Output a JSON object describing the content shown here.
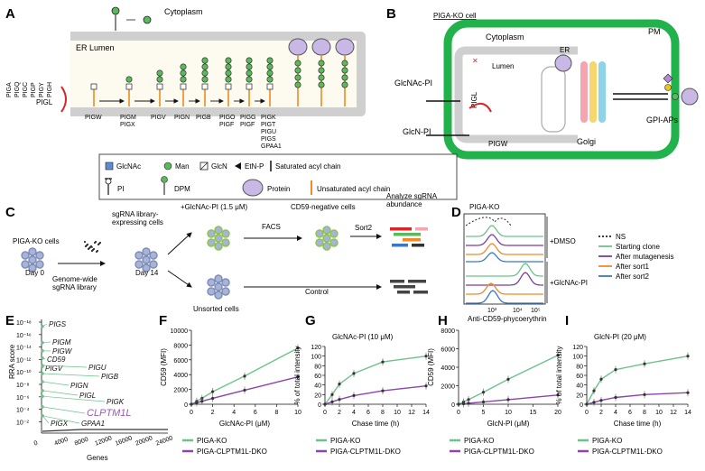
{
  "panels": {
    "A": {
      "letter": "A",
      "cytoplasm": "Cytoplasm",
      "er_lumen": "ER Lumen",
      "piga_complex": [
        "PIGA",
        "PIGQ",
        "PIGC",
        "PIGP",
        "PIGY",
        "PIGH"
      ],
      "pigl": "PIGL",
      "steps": [
        "PIGW",
        "PIGM\nPIGX",
        "PIGV",
        "PIGN",
        "PIGB",
        "PIGO\nPIGF",
        "PIGG\nPIGF",
        "PIGK\nPIGT\nPIGU\nPIGS\nGPAA1"
      ]
    },
    "B": {
      "letter": "B",
      "title": "PIGA-KO cell",
      "pm": "PM",
      "cytoplasm": "Cytoplasm",
      "er": "ER",
      "lumen": "Lumen",
      "glcnac_pi": "GlcNAc-PI",
      "glcn_pi": "GlcN-PI",
      "pigl": "PIGL",
      "pigw": "PIGW",
      "golgi": "Golgi",
      "gpi_aps": "GPI-APs"
    },
    "legend": {
      "glcnac": "GlcNAc",
      "man": "Man",
      "glcn": "GlcN",
      "etnp": "EtN-P",
      "saturated": "Saturated acyl chain",
      "pi": "PI",
      "dpm": "DPM",
      "protein": "Protein",
      "unsaturated": "Unsaturated acyl chain"
    },
    "C": {
      "letter": "C",
      "piga_ko_cells": "PIGA-KO cells",
      "day0": "Day 0",
      "library": "Genome-wide\nsgRNA library",
      "library_cells": "sgRNA library-\nexpressing cells",
      "day14": "Day 14",
      "treatment": "+GlcNAc-PI (1.5 μM)",
      "facs": "FACS",
      "cd59_neg": "CD59-negative cells",
      "sort2": "Sort2",
      "analyze": "Analyze sgRNA\nabundance",
      "unsorted": "Unsorted cells",
      "control": "Control"
    },
    "D": {
      "letter": "D",
      "title": "PIGA-KO",
      "dmso": "+DMSO",
      "glcnac": "+GlcNAc-PI",
      "xlabel": "Anti-CD59-phycoerythrin",
      "ticks": [
        "10³",
        "10⁴",
        "10⁵"
      ],
      "legend": [
        {
          "label": "NS",
          "color": "#222222",
          "dash": true
        },
        {
          "label": "Starting clone",
          "color": "#6cc38a"
        },
        {
          "label": "After mutagenesis",
          "color": "#7a3fa0"
        },
        {
          "label": "After sort1",
          "color": "#f08a24"
        },
        {
          "label": "After sort2",
          "color": "#3a78c2"
        }
      ]
    },
    "E": {
      "letter": "E",
      "ylabel": "RRA score",
      "xlabel": "Genes",
      "yticks": [
        "10⁻¹⁸",
        "10⁻¹⁶",
        "10⁻¹⁴",
        "10⁻¹²",
        "10⁻¹⁰",
        "10⁻⁸",
        "10⁻⁶",
        "10⁻⁴",
        "10⁻²"
      ],
      "xticks": [
        "0",
        "4000",
        "8000",
        "12000",
        "16000",
        "20000",
        "24000"
      ],
      "genes": [
        "PIGS",
        "PIGM",
        "PIGW",
        "CD59",
        "PIGV",
        "PIGU",
        "PIGB",
        "PIGN",
        "PIGL",
        "PIGK",
        "CLPTM1L",
        "PIGX",
        "GPAA1"
      ]
    },
    "F": {
      "letter": "F"
    },
    "G": {
      "letter": "G"
    },
    "H": {
      "letter": "H"
    },
    "I": {
      "letter": "I"
    }
  },
  "chart_data": [
    {
      "panel": "F",
      "type": "line",
      "title": "",
      "xlabel": "GlcNAc-PI (μM)",
      "ylabel": "CD59 (MFI)",
      "xlim": [
        0,
        10
      ],
      "ylim": [
        0,
        10000
      ],
      "xticks": [
        0,
        2,
        4,
        6,
        8,
        10
      ],
      "yticks": [
        0,
        2000,
        4000,
        6000,
        8000,
        10000
      ],
      "series": [
        {
          "name": "PIGA-KO",
          "color": "#6cc38a",
          "x": [
            0,
            0.5,
            1,
            2,
            5,
            10
          ],
          "y": [
            0,
            400,
            800,
            1700,
            3800,
            7600
          ]
        },
        {
          "name": "PIGA-CLPTM1L-DKO",
          "color": "#8e44ad",
          "x": [
            0,
            0.5,
            1,
            2,
            5,
            10
          ],
          "y": [
            0,
            200,
            400,
            800,
            1900,
            3700
          ]
        }
      ]
    },
    {
      "panel": "G",
      "type": "line",
      "title": "GlcNAc-PI (10 μM)",
      "xlabel": "Chase time (h)",
      "ylabel": "% of total intensity",
      "xlim": [
        0,
        14
      ],
      "ylim": [
        0,
        120
      ],
      "xticks": [
        0,
        2,
        4,
        6,
        8,
        10,
        12,
        14
      ],
      "yticks": [
        0,
        20,
        40,
        60,
        80,
        100,
        120
      ],
      "series": [
        {
          "name": "PIGA-KO",
          "color": "#6cc38a",
          "x": [
            0,
            1,
            2,
            4,
            8,
            14
          ],
          "y": [
            0,
            20,
            42,
            64,
            88,
            100
          ]
        },
        {
          "name": "PIGA-CLPTM1L-DKO",
          "color": "#8e44ad",
          "x": [
            0,
            1,
            2,
            4,
            8,
            14
          ],
          "y": [
            0,
            5,
            10,
            18,
            28,
            38
          ]
        }
      ]
    },
    {
      "panel": "H",
      "type": "line",
      "title": "",
      "xlabel": "GlcN-PI (μM)",
      "ylabel": "CD59 (MFI)",
      "xlim": [
        0,
        20
      ],
      "ylim": [
        0,
        8000
      ],
      "xticks": [
        0,
        5,
        10,
        15,
        20
      ],
      "yticks": [
        0,
        2000,
        4000,
        6000,
        8000
      ],
      "series": [
        {
          "name": "PIGA-KO",
          "color": "#6cc38a",
          "x": [
            0,
            1,
            2,
            5,
            10,
            20
          ],
          "y": [
            0,
            250,
            500,
            1300,
            2700,
            5300
          ]
        },
        {
          "name": "PIGA-CLPTM1L-DKO",
          "color": "#8e44ad",
          "x": [
            0,
            1,
            2,
            5,
            10,
            20
          ],
          "y": [
            0,
            50,
            100,
            250,
            500,
            1000
          ]
        }
      ]
    },
    {
      "panel": "I",
      "type": "line",
      "title": "GlcN-PI (20 μM)",
      "xlabel": "Chase time (h)",
      "ylabel": "% of total intensity",
      "xlim": [
        0,
        14
      ],
      "ylim": [
        0,
        120
      ],
      "xticks": [
        0,
        2,
        4,
        6,
        8,
        10,
        12,
        14
      ],
      "yticks": [
        0,
        20,
        40,
        60,
        80,
        100,
        120
      ],
      "series": [
        {
          "name": "PIGA-KO",
          "color": "#6cc38a",
          "x": [
            0,
            1,
            2,
            4,
            8,
            14
          ],
          "y": [
            0,
            28,
            52,
            72,
            84,
            100
          ]
        },
        {
          "name": "PIGA-CLPTM1L-DKO",
          "color": "#8e44ad",
          "x": [
            0,
            1,
            2,
            4,
            8,
            14
          ],
          "y": [
            0,
            4,
            8,
            14,
            20,
            24
          ]
        }
      ]
    }
  ],
  "chart_legend": {
    "ko": "PIGA-KO",
    "dko": "PIGA-CLPTM1L-DKO"
  }
}
